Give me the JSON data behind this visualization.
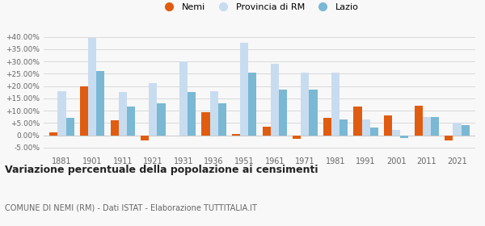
{
  "years": [
    1881,
    1901,
    1911,
    1921,
    1931,
    1936,
    1951,
    1961,
    1971,
    1981,
    1991,
    2001,
    2011,
    2021
  ],
  "nemi": [
    1.0,
    20.0,
    6.0,
    -2.0,
    0.0,
    9.5,
    0.5,
    3.5,
    -1.5,
    7.0,
    11.5,
    8.0,
    12.0,
    -2.0
  ],
  "provincia": [
    18.0,
    39.5,
    17.5,
    21.0,
    30.0,
    18.0,
    37.5,
    29.0,
    25.5,
    25.5,
    6.5,
    2.0,
    7.5,
    5.0
  ],
  "lazio": [
    7.0,
    26.0,
    11.5,
    13.0,
    17.5,
    13.0,
    25.5,
    18.5,
    18.5,
    6.5,
    3.0,
    -1.0,
    7.5,
    4.0
  ],
  "nemi_color": "#e05c10",
  "provincia_color": "#c8dcf0",
  "lazio_color": "#7ab8d4",
  "title": "Variazione percentuale della popolazione ai censimenti",
  "subtitle": "COMUNE DI NEMI (RM) - Dati ISTAT - Elaborazione TUTTITALIA.IT",
  "legend_labels": [
    "Nemi",
    "Provincia di RM",
    "Lazio"
  ],
  "ylim": [
    -7.5,
    43.0
  ],
  "yticks": [
    -5.0,
    0.0,
    5.0,
    10.0,
    15.0,
    20.0,
    25.0,
    30.0,
    35.0,
    40.0
  ],
  "background_color": "#f8f8f8",
  "bar_width": 0.27
}
